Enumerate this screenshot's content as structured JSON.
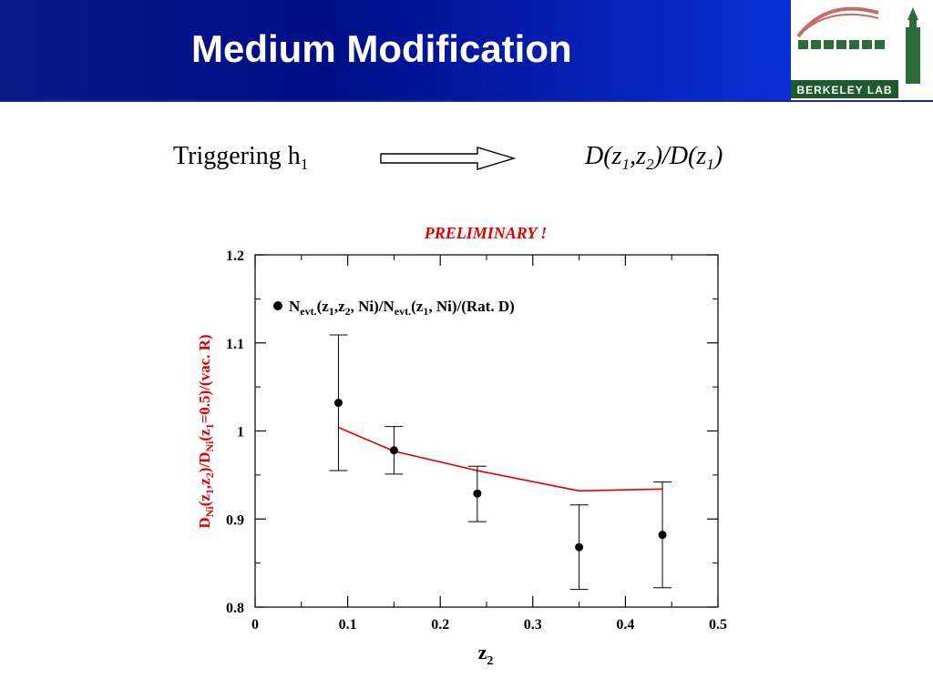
{
  "header": {
    "title": "Medium Modification",
    "logo_text": "BERKELEY LAB"
  },
  "subtitle_row": {
    "left_text": "Triggering h",
    "left_sub": "1",
    "right_parts": [
      "D(z",
      "1",
      ",z",
      "2",
      ")/D(z",
      "1",
      ")"
    ]
  },
  "colors": {
    "header_dark": "#000e85",
    "header_light": "#0a2fd8",
    "red": "#e00000",
    "logo_green": "#2e6b3a"
  },
  "chart_data": {
    "type": "scatter",
    "preliminary_label": "PRELIMINARY !",
    "xlim": [
      0,
      0.5
    ],
    "ylim": [
      0.8,
      1.2
    ],
    "x_ticks": [
      "0",
      "0.1",
      "0.2",
      "0.3",
      "0.4",
      "0.5"
    ],
    "y_ticks": [
      "0.8",
      "0.9",
      "1",
      "1.1",
      "1.2"
    ],
    "xlabel_main": "z",
    "xlabel_sub": "2",
    "ylabel_parts": [
      "D",
      "Ni",
      "(z",
      "1",
      ",z",
      "2",
      ")/D",
      "Ni",
      "(z",
      "1",
      "=0.5)/(vac. R)"
    ],
    "legend": {
      "parts": [
        "N",
        "evt.",
        "(z",
        "1",
        ",z",
        "2",
        ", Ni)/N",
        "evt.",
        "(z",
        "1",
        ", Ni)/(Rat. D)"
      ],
      "placement": "top-left"
    },
    "series": [
      {
        "kind": "points_with_errors",
        "x": [
          0.09,
          0.15,
          0.24,
          0.35,
          0.44
        ],
        "y": [
          1.032,
          0.978,
          0.929,
          0.868,
          0.882
        ],
        "err_low": [
          0.955,
          0.951,
          0.897,
          0.82,
          0.822
        ],
        "err_high": [
          1.109,
          1.005,
          0.96,
          0.916,
          0.942
        ]
      },
      {
        "kind": "line",
        "color": "#e00000",
        "x": [
          0.09,
          0.15,
          0.24,
          0.35,
          0.44
        ],
        "y": [
          1.004,
          0.977,
          0.955,
          0.932,
          0.934
        ]
      }
    ]
  }
}
